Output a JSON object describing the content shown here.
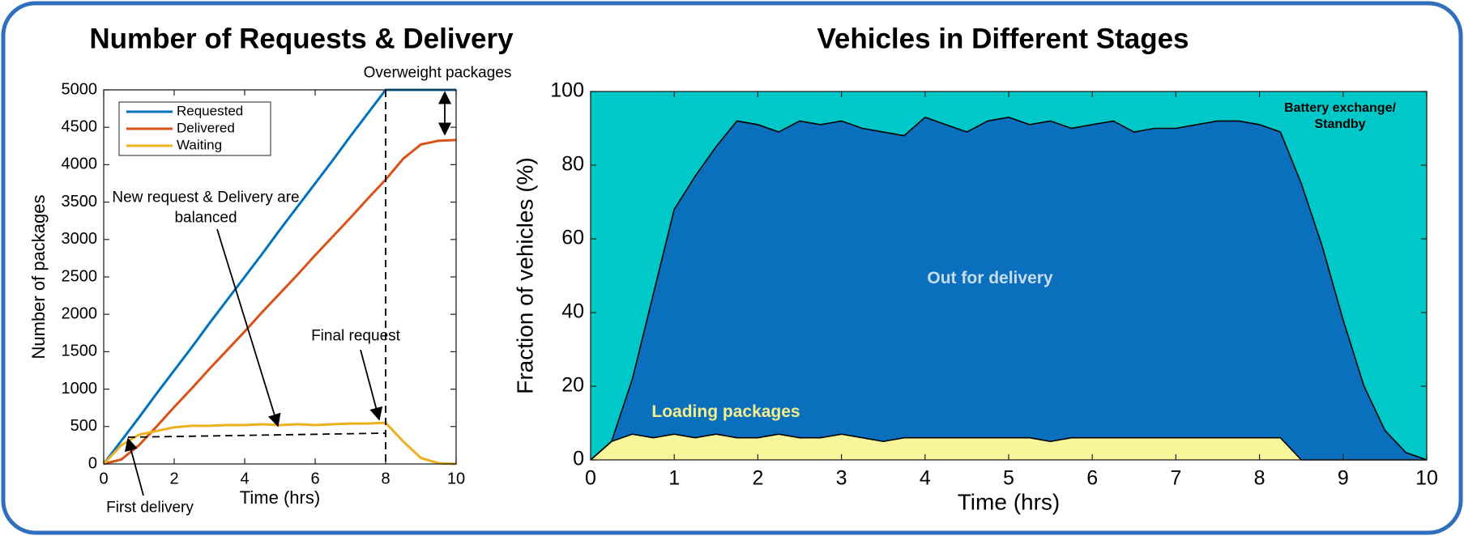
{
  "chart_data": [
    {
      "type": "line",
      "title": "Number of Requests & Delivery",
      "xlabel": "Time (hrs)",
      "ylabel": "Number of packages",
      "x": [
        0,
        0.5,
        1,
        1.5,
        2,
        2.5,
        3,
        3.5,
        4,
        4.5,
        5,
        5.5,
        6,
        6.5,
        7,
        7.5,
        8,
        8.5,
        9,
        9.5,
        10
      ],
      "series": [
        {
          "name": "Requested",
          "color": "#0072bd",
          "values": [
            0,
            310,
            620,
            940,
            1250,
            1560,
            1880,
            2190,
            2500,
            2810,
            3130,
            3440,
            3750,
            4060,
            4380,
            4690,
            5000,
            5000,
            5000,
            5000,
            5000
          ]
        },
        {
          "name": "Delivered",
          "color": "#d95319",
          "values": [
            0,
            60,
            250,
            500,
            760,
            1010,
            1270,
            1520,
            1770,
            2030,
            2280,
            2530,
            2790,
            3040,
            3290,
            3550,
            3800,
            4080,
            4270,
            4320,
            4330
          ]
        },
        {
          "name": "Waiting",
          "color": "#edb120",
          "values": [
            0,
            250,
            390,
            440,
            490,
            510,
            510,
            520,
            520,
            530,
            520,
            530,
            520,
            530,
            540,
            540,
            550,
            300,
            80,
            10,
            0
          ]
        }
      ],
      "xlim": [
        0,
        10
      ],
      "ylim": [
        0,
        5000
      ],
      "xticks": [
        0,
        2,
        4,
        6,
        8,
        10
      ],
      "yticks": [
        0,
        500,
        1000,
        1500,
        2000,
        2500,
        3000,
        3500,
        4000,
        4500,
        5000
      ],
      "legend": "upper left",
      "annotations": [
        "Overweight  packages",
        "New request & Delivery are balanced",
        "Final request",
        "First delivery"
      ]
    },
    {
      "type": "area",
      "title": "Vehicles in Different Stages",
      "xlabel": "Time (hrs)",
      "ylabel": "Fraction of vehicles (%)",
      "stacked": true,
      "x": [
        0,
        0.25,
        0.5,
        0.75,
        1,
        1.25,
        1.5,
        1.75,
        2,
        2.25,
        2.5,
        2.75,
        3,
        3.25,
        3.5,
        3.75,
        4,
        4.25,
        4.5,
        4.75,
        5,
        5.25,
        5.5,
        5.75,
        6,
        6.25,
        6.5,
        6.75,
        7,
        7.25,
        7.5,
        7.75,
        8,
        8.25,
        8.5,
        8.75,
        9,
        9.25,
        9.5,
        9.75,
        10
      ],
      "series": [
        {
          "name": "Loading packages",
          "color": "#f8f59a",
          "values": [
            0,
            5,
            7,
            6,
            7,
            6,
            7,
            6,
            6,
            7,
            6,
            6,
            7,
            6,
            5,
            6,
            6,
            6,
            6,
            6,
            6,
            6,
            5,
            6,
            6,
            6,
            6,
            6,
            6,
            6,
            6,
            6,
            6,
            6,
            0,
            0,
            0,
            0,
            0,
            0,
            0
          ]
        },
        {
          "name": "Out for delivery",
          "color": "#0a6fbd",
          "values": [
            0,
            0,
            15,
            39,
            61,
            71,
            78,
            86,
            85,
            82,
            86,
            85,
            85,
            84,
            84,
            82,
            87,
            85,
            83,
            86,
            87,
            85,
            87,
            84,
            85,
            86,
            83,
            84,
            84,
            85,
            86,
            86,
            85,
            83,
            75,
            58,
            38,
            20,
            8,
            2,
            0
          ]
        },
        {
          "name": "Battery exchange/ Standby",
          "color": "#00c8c8",
          "values": [
            100,
            95,
            78,
            55,
            32,
            23,
            15,
            8,
            9,
            11,
            8,
            9,
            8,
            10,
            11,
            12,
            7,
            9,
            11,
            8,
            7,
            9,
            8,
            10,
            9,
            8,
            11,
            10,
            10,
            9,
            8,
            8,
            9,
            11,
            25,
            42,
            62,
            80,
            92,
            98,
            100
          ]
        }
      ],
      "xlim": [
        0,
        10
      ],
      "ylim": [
        0,
        100
      ],
      "xticks": [
        0,
        1,
        2,
        3,
        4,
        5,
        6,
        7,
        8,
        9,
        10
      ],
      "yticks": [
        0,
        20,
        40,
        60,
        80,
        100
      ]
    }
  ]
}
